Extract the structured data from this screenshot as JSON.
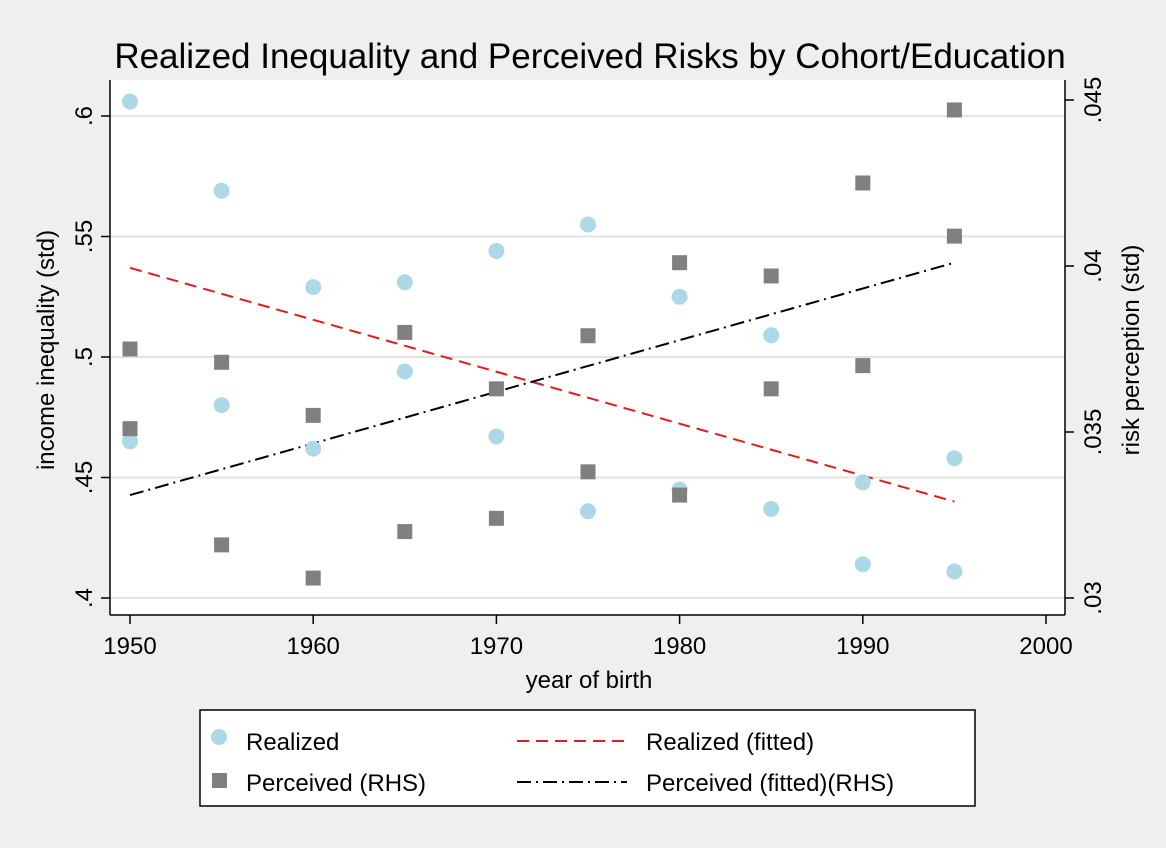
{
  "chart_data": {
    "type": "scatter",
    "title": "Realized Inequality and Perceived Risks by Cohort/Education",
    "xlabel": "year of birth",
    "ylabel": "income inequality (std)",
    "y2label": "risk perception (std)",
    "xlim": [
      1950,
      2000
    ],
    "ylim": [
      0.4,
      0.6
    ],
    "y2lim": [
      0.03,
      0.045
    ],
    "xticks": [
      {
        "value": 1950,
        "label": "1950"
      },
      {
        "value": 1960,
        "label": "1960"
      },
      {
        "value": 1970,
        "label": "1970"
      },
      {
        "value": 1980,
        "label": "1980"
      },
      {
        "value": 1990,
        "label": "1990"
      },
      {
        "value": 2000,
        "label": "2000"
      }
    ],
    "yticks": [
      {
        "value": 0.4,
        "label": ".4"
      },
      {
        "value": 0.45,
        "label": ".45"
      },
      {
        "value": 0.5,
        "label": ".5"
      },
      {
        "value": 0.55,
        "label": ".55"
      },
      {
        "value": 0.6,
        "label": ".6"
      }
    ],
    "y2ticks": [
      {
        "value": 0.03,
        "label": ".03"
      },
      {
        "value": 0.035,
        "label": ".035"
      },
      {
        "value": 0.04,
        "label": ".04"
      },
      {
        "value": 0.045,
        "label": ".045"
      }
    ],
    "grid": true,
    "legend_position": "bottom",
    "series": [
      {
        "name": "Realized",
        "kind": "scatter",
        "axis": "left",
        "marker": "circle",
        "color": "#add8e6",
        "points": [
          {
            "x": 1950,
            "y": 0.606
          },
          {
            "x": 1950,
            "y": 0.465
          },
          {
            "x": 1955,
            "y": 0.569
          },
          {
            "x": 1955,
            "y": 0.48
          },
          {
            "x": 1960,
            "y": 0.529
          },
          {
            "x": 1960,
            "y": 0.462
          },
          {
            "x": 1965,
            "y": 0.531
          },
          {
            "x": 1965,
            "y": 0.494
          },
          {
            "x": 1970,
            "y": 0.544
          },
          {
            "x": 1970,
            "y": 0.467
          },
          {
            "x": 1975,
            "y": 0.555
          },
          {
            "x": 1975,
            "y": 0.436
          },
          {
            "x": 1980,
            "y": 0.525
          },
          {
            "x": 1980,
            "y": 0.445
          },
          {
            "x": 1985,
            "y": 0.509
          },
          {
            "x": 1985,
            "y": 0.437
          },
          {
            "x": 1990,
            "y": 0.448
          },
          {
            "x": 1990,
            "y": 0.414
          },
          {
            "x": 1995,
            "y": 0.458
          },
          {
            "x": 1995,
            "y": 0.411
          }
        ]
      },
      {
        "name": "Perceived (RHS)",
        "kind": "scatter",
        "axis": "right",
        "marker": "square",
        "color": "#808080",
        "points": [
          {
            "x": 1950,
            "y": 0.0375
          },
          {
            "x": 1950,
            "y": 0.0351
          },
          {
            "x": 1955,
            "y": 0.0371
          },
          {
            "x": 1955,
            "y": 0.0316
          },
          {
            "x": 1960,
            "y": 0.0355
          },
          {
            "x": 1960,
            "y": 0.0306
          },
          {
            "x": 1965,
            "y": 0.038
          },
          {
            "x": 1965,
            "y": 0.032
          },
          {
            "x": 1970,
            "y": 0.0363
          },
          {
            "x": 1970,
            "y": 0.0324
          },
          {
            "x": 1975,
            "y": 0.0379
          },
          {
            "x": 1975,
            "y": 0.0338
          },
          {
            "x": 1980,
            "y": 0.0401
          },
          {
            "x": 1980,
            "y": 0.0331
          },
          {
            "x": 1985,
            "y": 0.0397
          },
          {
            "x": 1985,
            "y": 0.0363
          },
          {
            "x": 1990,
            "y": 0.0425
          },
          {
            "x": 1990,
            "y": 0.037
          },
          {
            "x": 1995,
            "y": 0.0447
          },
          {
            "x": 1995,
            "y": 0.0409
          }
        ]
      },
      {
        "name": "Realized (fitted)",
        "kind": "line",
        "axis": "left",
        "dash": "dashed",
        "color": "#e41a1c",
        "points": [
          {
            "x": 1950,
            "y": 0.537
          },
          {
            "x": 1995,
            "y": 0.44
          }
        ]
      },
      {
        "name": "Perceived (fitted)(RHS)",
        "kind": "line",
        "axis": "right",
        "dash": "dash-dot",
        "color": "#000000",
        "points": [
          {
            "x": 1950,
            "y": 0.0331
          },
          {
            "x": 1995,
            "y": 0.0401
          }
        ]
      }
    ]
  }
}
